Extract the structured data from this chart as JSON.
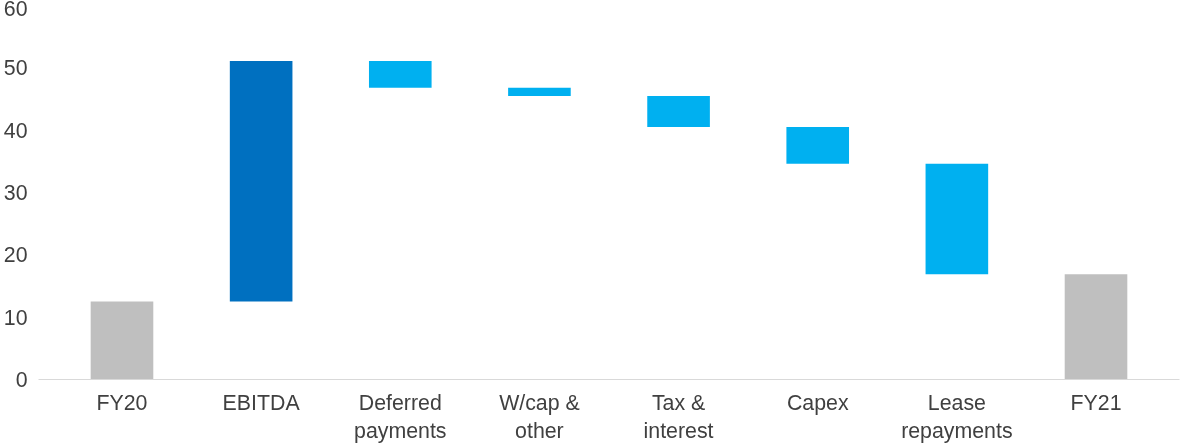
{
  "chart_data": {
    "type": "bar",
    "categories": [
      "FY20",
      "EBITDA",
      "Deferred\npayments",
      "W/cap &\nother",
      "Tax &\ninterest",
      "Capex",
      "Lease\nrepayments",
      "FY21"
    ],
    "values": [
      12.5,
      38.6,
      -4.3,
      -1.3,
      -5.0,
      -5.9,
      -17.7,
      16.9
    ],
    "base": [
      0,
      12.5,
      51.1,
      46.8,
      45.5,
      40.5,
      34.6,
      0
    ],
    "colors": [
      "#bfbfbf",
      "#0070c0",
      "#00b0f0",
      "#00b0f0",
      "#00b0f0",
      "#00b0f0",
      "#00b0f0",
      "#bfbfbf"
    ],
    "ylim": [
      0,
      60
    ],
    "yticks": [
      0,
      10,
      20,
      30,
      40,
      50,
      60
    ],
    "grid": false
  }
}
